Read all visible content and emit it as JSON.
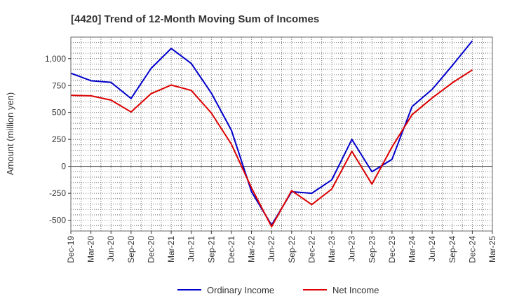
{
  "chart_data": {
    "type": "line",
    "title": "[4420]  Trend of 12-Month Moving Sum of Incomes",
    "xlabel": "",
    "ylabel": "Amount (million yen)",
    "ylim": [
      -600,
      1200
    ],
    "yticks": [
      -500,
      -250,
      0,
      250,
      500,
      750,
      1000
    ],
    "ytick_labels": [
      "-500",
      "-250",
      "0",
      "250",
      "500",
      "750",
      "1,000"
    ],
    "categories": [
      "Dec-19",
      "Mar-20",
      "Jun-20",
      "Sep-20",
      "Dec-20",
      "Mar-21",
      "Jun-21",
      "Sep-21",
      "Dec-21",
      "Mar-22",
      "Jun-22",
      "Sep-22",
      "Dec-22",
      "Mar-23",
      "Jun-23",
      "Sep-23",
      "Dec-23",
      "Mar-24",
      "Jun-24",
      "Sep-24",
      "Dec-24",
      "Mar-25"
    ],
    "grid": true,
    "legend_position": "bottom",
    "series": [
      {
        "name": "Ordinary Income",
        "color": "#0000cc",
        "values": [
          865,
          795,
          780,
          630,
          910,
          1095,
          955,
          680,
          335,
          -235,
          -545,
          -235,
          -250,
          -125,
          250,
          -50,
          65,
          555,
          715,
          935,
          1165,
          null
        ]
      },
      {
        "name": "Net Income",
        "color": "#dd0000",
        "values": [
          660,
          655,
          615,
          505,
          675,
          755,
          705,
          495,
          205,
          -200,
          -560,
          -225,
          -355,
          -210,
          140,
          -165,
          180,
          480,
          635,
          775,
          895,
          null
        ]
      }
    ]
  }
}
